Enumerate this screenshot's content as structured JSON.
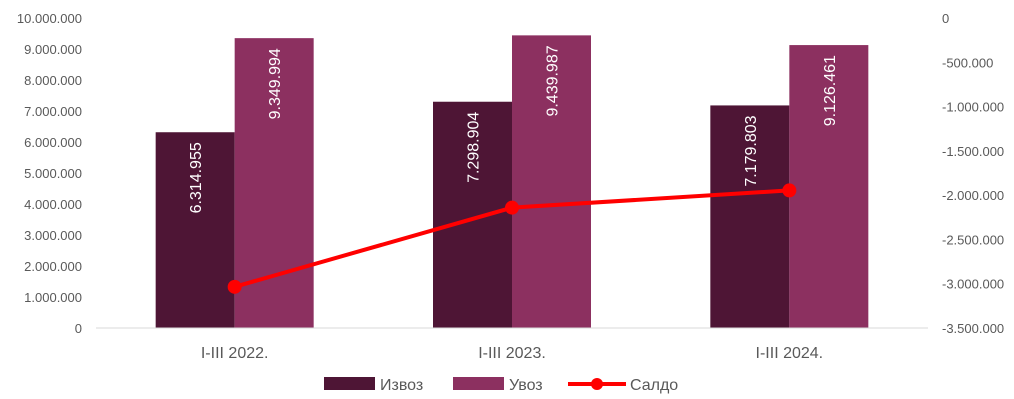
{
  "chart_data": {
    "type": "bar",
    "categories": [
      "I-III 2022.",
      "I-III 2023.",
      "I-III 2024."
    ],
    "series": [
      {
        "name": "Извоз",
        "kind": "bar",
        "axis": "left",
        "color": "#4E1535",
        "values": [
          6314955,
          7298904,
          7179803
        ],
        "labels": [
          "6.314.955",
          "7.298.904",
          "7.179.803"
        ]
      },
      {
        "name": "Увоз",
        "kind": "bar",
        "axis": "left",
        "color": "#8C3060",
        "values": [
          9349994,
          9439987,
          9126461
        ],
        "labels": [
          "9.349.994",
          "9.439.987",
          "9.126.461"
        ]
      },
      {
        "name": "Салдо",
        "kind": "line",
        "axis": "right",
        "color": "#FF0000",
        "values": [
          -3035039,
          -2141083,
          -1946658
        ]
      }
    ],
    "y_left": {
      "min": 0,
      "max": 10000000,
      "ticks": [
        0,
        1000000,
        2000000,
        3000000,
        4000000,
        5000000,
        6000000,
        7000000,
        8000000,
        9000000,
        10000000
      ],
      "tick_labels": [
        "0",
        "1.000.000",
        "2.000.000",
        "3.000.000",
        "4.000.000",
        "5.000.000",
        "6.000.000",
        "7.000.000",
        "8.000.000",
        "9.000.000",
        "10.000.000"
      ]
    },
    "y_right": {
      "min": -3500000,
      "max": 0,
      "ticks": [
        -3500000,
        -3000000,
        -2500000,
        -2000000,
        -1500000,
        -1000000,
        -500000,
        0
      ],
      "tick_labels": [
        "-3.500.000",
        "-3.000.000",
        "-2.500.000",
        "-2.000.000",
        "-1.500.000",
        "-1.000.000",
        "-500.000",
        "0"
      ]
    },
    "grid": false,
    "legend": "bottom"
  }
}
